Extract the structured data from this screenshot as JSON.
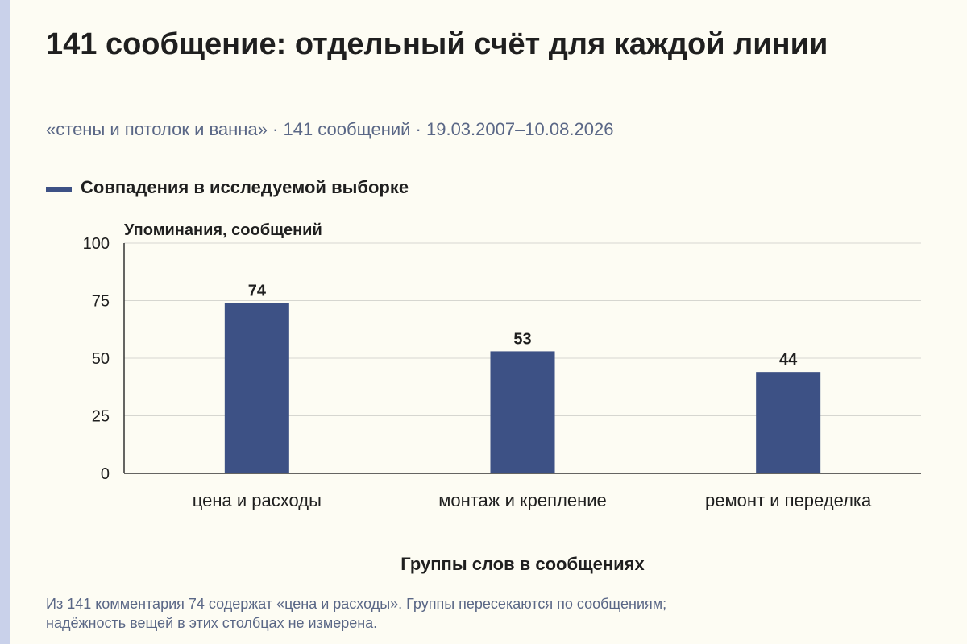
{
  "page": {
    "title": "141 сообщение: отдельный счёт для каждой линии",
    "subtitle": "«стены и потолок и ванна» · 141 сообщений · 19.03.2007–10.08.2026",
    "note_lines": [
      "Из 141 комментария 74 содержат «цена и расходы». Группы пересекаются по сообщениям;",
      "надёжность вещей в этих столбцах не измерена."
    ]
  },
  "colors": {
    "bar": "#3d5185",
    "background": "#fdfcf3",
    "muted_text": "#5a6786",
    "grid": "#d6d6d0",
    "axis": "#333333"
  },
  "chart_data": {
    "type": "bar",
    "categories": [
      "цена и расходы",
      "монтаж и крепление",
      "ремонт и переделка"
    ],
    "series": [
      {
        "name": "Совпадения в исследуемой выборке",
        "values": [
          74,
          53,
          44
        ]
      }
    ],
    "data_labels": [
      "74",
      "53",
      "44"
    ],
    "xlabel": "Группы слов в сообщениях",
    "ylabel": "Упоминания, сообщений",
    "ylim": [
      0,
      100
    ],
    "yticks": [
      0,
      25,
      50,
      75,
      100
    ],
    "grid": true,
    "legend": "top-left"
  }
}
